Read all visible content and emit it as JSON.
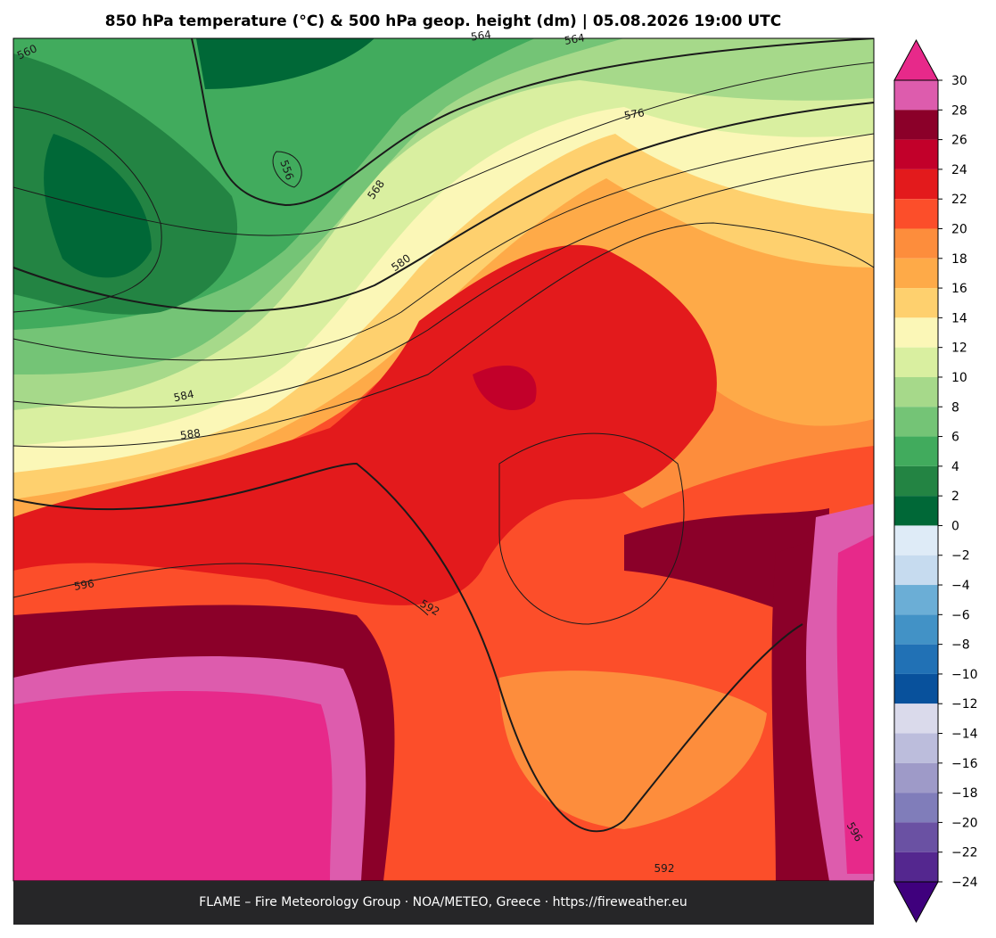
{
  "title": "850 hPa temperature (°C) & 500 hPa geop. height (dm)  |  05.08.2026 19:00 UTC",
  "footer": "FLAME – Fire Meteorology Group · NOA/METEO, Greece · https://fireweather.eu",
  "contour_labels": [
    "560",
    "564",
    "564",
    "556",
    "568",
    "576",
    "580",
    "584",
    "588",
    "596",
    "592",
    "592",
    "596"
  ],
  "colorbar": {
    "lim": [
      -24,
      30
    ],
    "ticks": [
      30,
      28,
      26,
      24,
      22,
      20,
      18,
      16,
      14,
      12,
      10,
      8,
      6,
      4,
      2,
      0,
      {
        "value": -2,
        "label": "−2"
      },
      {
        "value": -4,
        "label": "−4"
      },
      {
        "value": -6,
        "label": "−6"
      },
      {
        "value": -8,
        "label": "−8"
      },
      {
        "value": -10,
        "label": "−10"
      },
      {
        "value": -12,
        "label": "−12"
      },
      {
        "value": -14,
        "label": "−14"
      },
      {
        "value": -16,
        "label": "−16"
      },
      {
        "value": -18,
        "label": "−18"
      },
      {
        "value": -20,
        "label": "−20"
      },
      {
        "value": -22,
        "label": "−22"
      },
      {
        "value": -24,
        "label": "−24"
      }
    ],
    "colors": [
      "#dd5cad",
      "#8b0029",
      "#c2002a",
      "#e31a1c",
      "#fc4e2a",
      "#fd8d3c",
      "#feaa48",
      "#fed06e",
      "#fbf7b7",
      "#d9efa0",
      "#a6d98a",
      "#74c476",
      "#41ab5d",
      "#238443",
      "#006837",
      "#deebf7",
      "#c6dbef",
      "#6baed6",
      "#4292c6",
      "#2171b5",
      "#08519c",
      "#dadaeb",
      "#bcbddc",
      "#9e9ac8",
      "#807dba",
      "#6a51a3",
      "#54278f"
    ],
    "over_color": "#e7298a",
    "under_color": "#3f007d"
  }
}
